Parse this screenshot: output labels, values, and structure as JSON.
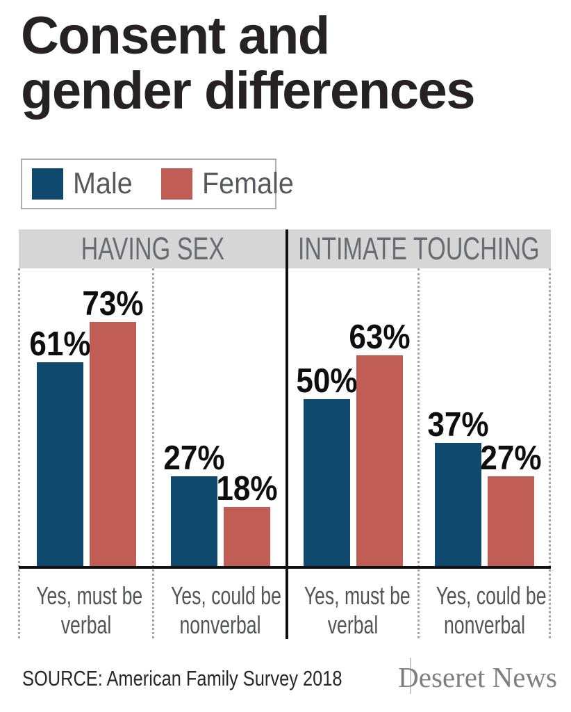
{
  "title": {
    "lines": [
      "Consent and",
      "gender differences"
    ]
  },
  "legend": {
    "items": [
      {
        "label": "Male",
        "color": "#0f4a6e"
      },
      {
        "label": "Female",
        "color": "#c05d55"
      }
    ]
  },
  "chart_data": {
    "type": "bar",
    "title": "Consent and gender differences",
    "series": [
      "Male",
      "Female"
    ],
    "series_colors": [
      "#0f4a6e",
      "#c05d55"
    ],
    "value_suffix": "%",
    "ylim": [
      0,
      100
    ],
    "legend_position": "top-left",
    "grid": false,
    "panels": [
      {
        "header": "HAVING SEX",
        "groups": [
          {
            "category": "Yes, must be verbal",
            "category_lines": [
              "Yes, must be",
              "verbal"
            ],
            "values": [
              61,
              73
            ]
          },
          {
            "category": "Yes, could be nonverbal",
            "category_lines": [
              "Yes, could be",
              "nonverbal"
            ],
            "values": [
              27,
              18
            ]
          }
        ]
      },
      {
        "header": "INTIMATE TOUCHING",
        "groups": [
          {
            "category": "Yes, must be verbal",
            "category_lines": [
              "Yes, must be",
              "verbal"
            ],
            "values": [
              50,
              63
            ]
          },
          {
            "category": "Yes, could be nonverbal",
            "category_lines": [
              "Yes, could be",
              "nonverbal"
            ],
            "values": [
              37,
              27
            ]
          }
        ]
      }
    ]
  },
  "footer": {
    "source": "SOURCE: American Family Survey 2018",
    "brand": "Deseret News"
  }
}
